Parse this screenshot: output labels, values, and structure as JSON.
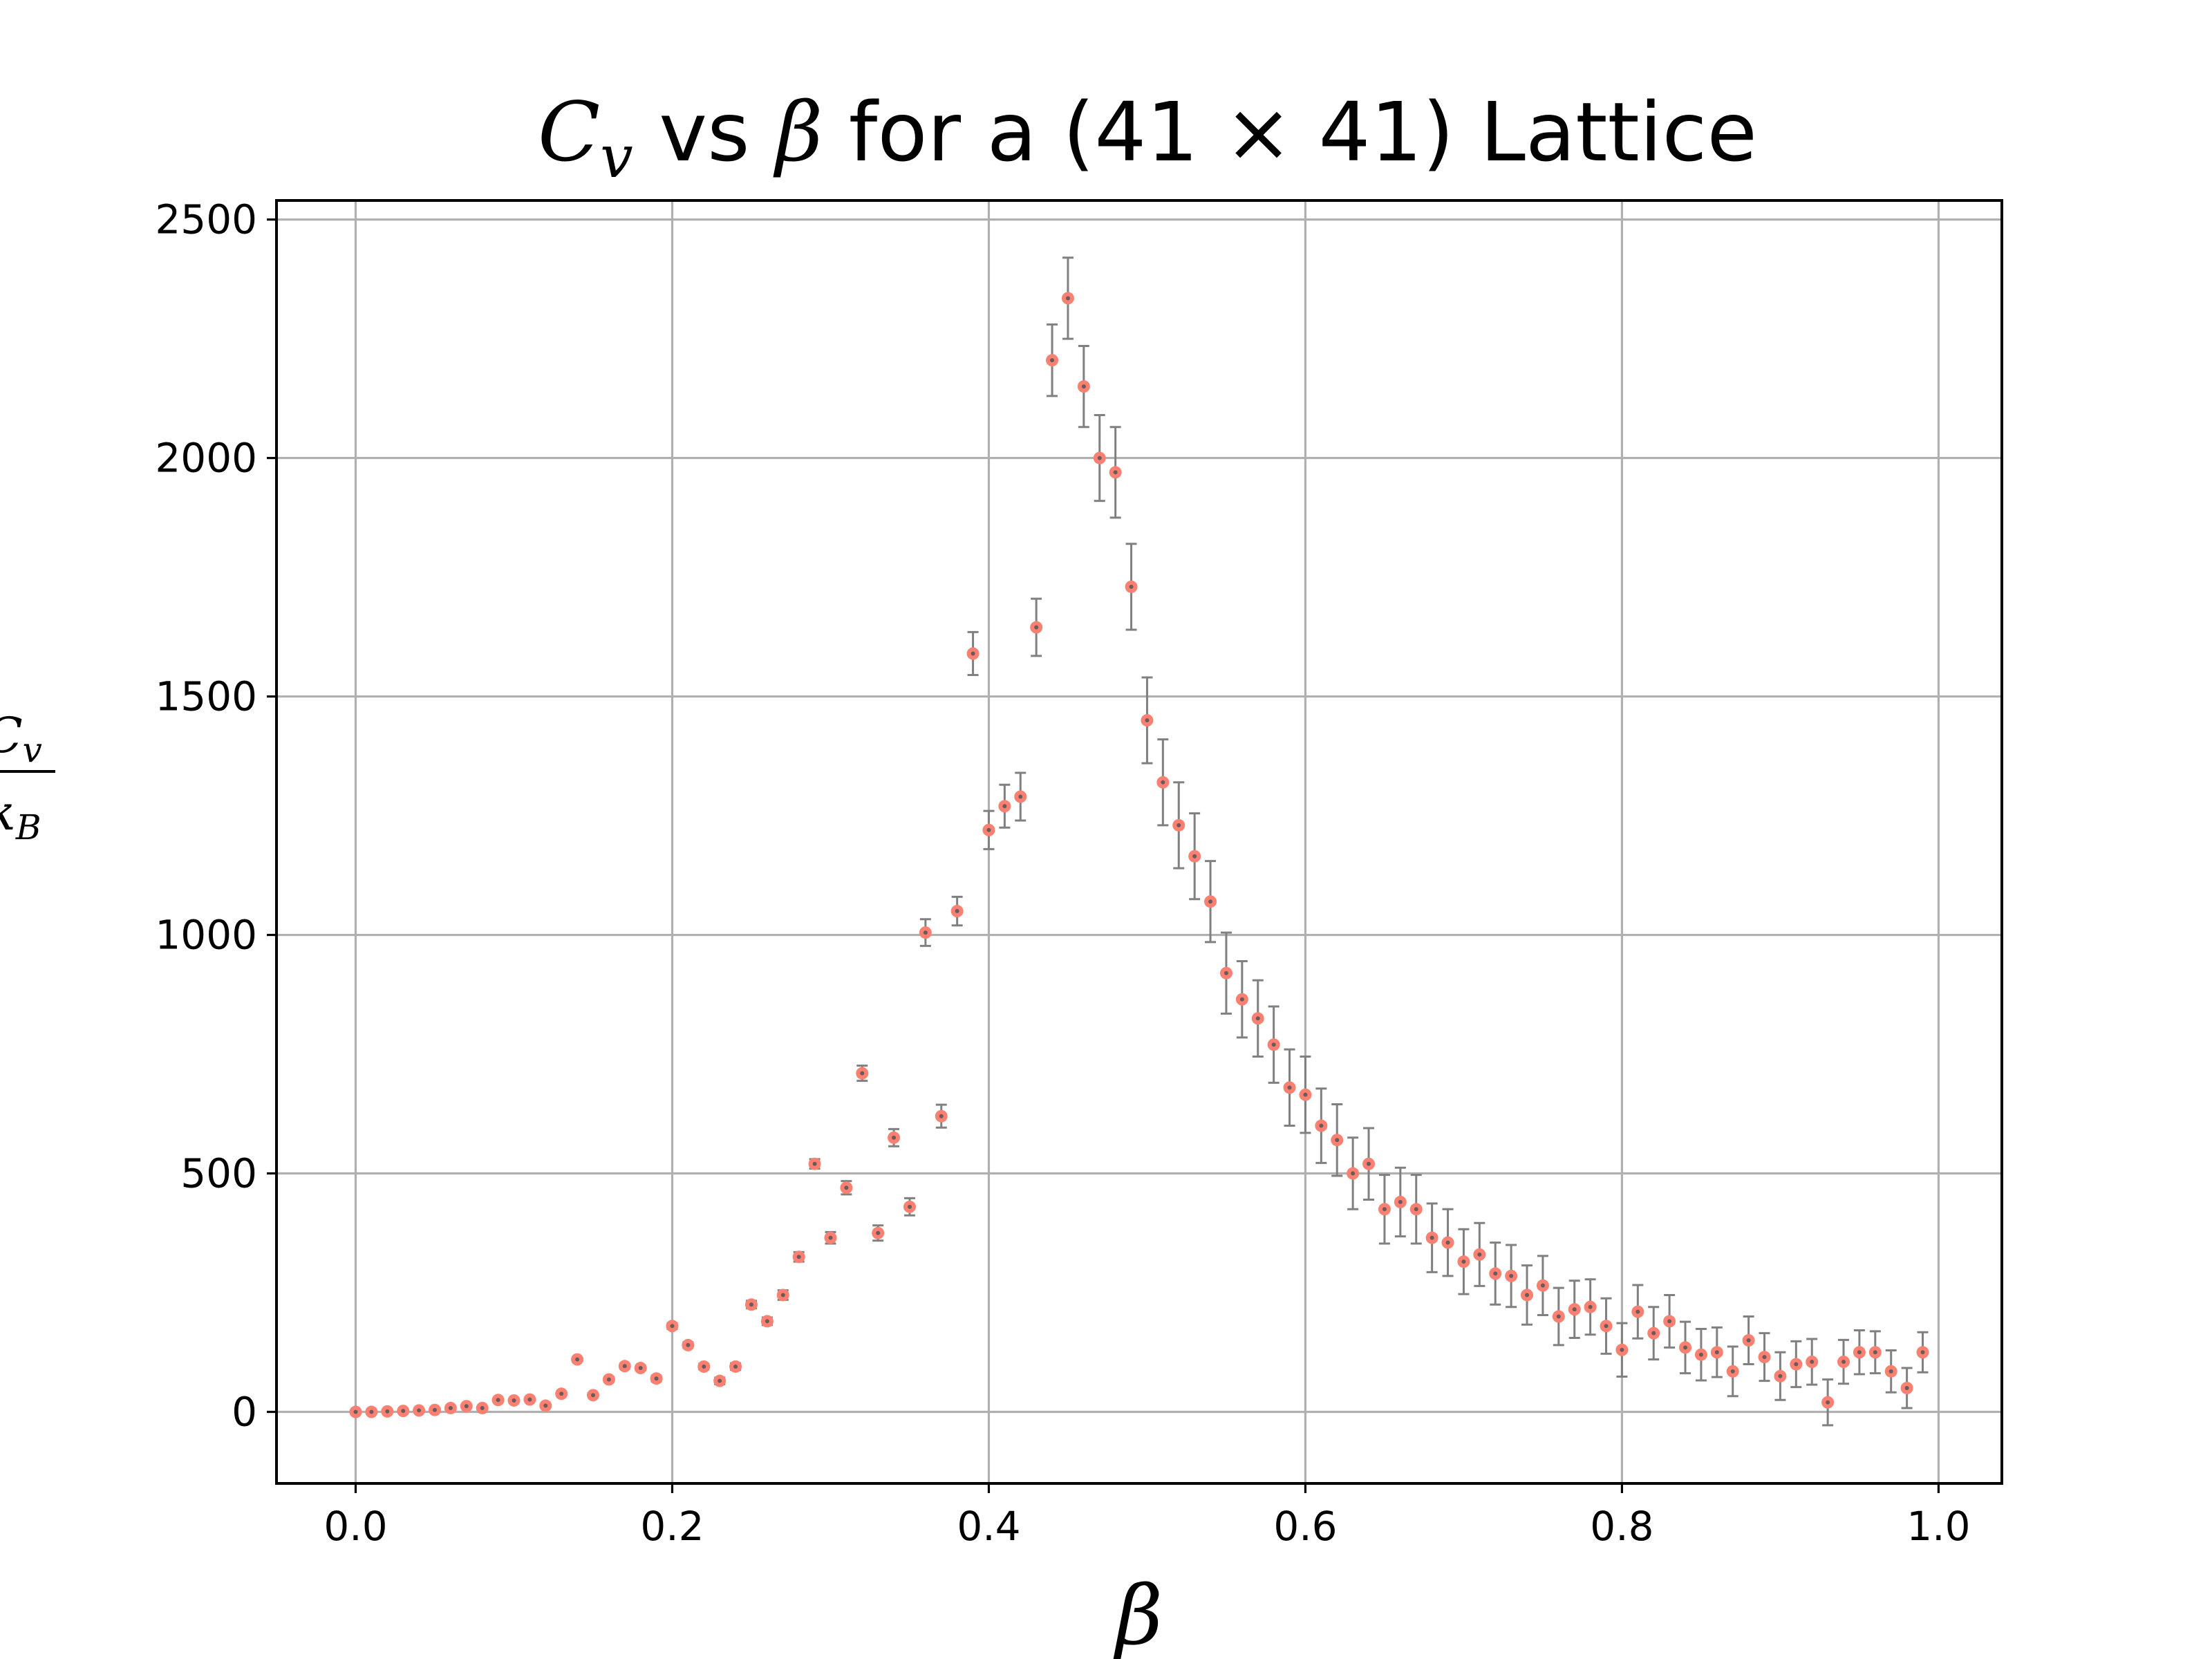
{
  "chart_data": {
    "type": "scatter",
    "title_parts": {
      "cv_symbol": "C",
      "cv_subscript": "v",
      "vs_text": " vs ",
      "beta_symbol": "β",
      "rest": " for a (41 × 41) Lattice"
    },
    "xlabel": "β",
    "ylabel": {
      "numerator": "C",
      "numerator_subscript": "v",
      "denominator": "k",
      "denominator_subscript": "B"
    },
    "xlim": [
      -0.05,
      1.04
    ],
    "ylim": [
      -150,
      2540
    ],
    "xticks": [
      "0.0",
      "0.2",
      "0.4",
      "0.6",
      "0.8",
      "1.0"
    ],
    "xtick_values": [
      0.0,
      0.2,
      0.4,
      0.6,
      0.8,
      1.0
    ],
    "yticks": [
      "0",
      "500",
      "1000",
      "1500",
      "2000",
      "2500"
    ],
    "ytick_values": [
      0,
      500,
      1000,
      1500,
      2000,
      2500
    ],
    "grid": true,
    "marker_color": "#fa8072",
    "errorbar_color": "#808080",
    "x": [
      0.0,
      0.01,
      0.02,
      0.03,
      0.04,
      0.05,
      0.06,
      0.07,
      0.08,
      0.09,
      0.1,
      0.11,
      0.12,
      0.13,
      0.14,
      0.15,
      0.16,
      0.17,
      0.18,
      0.19,
      0.2,
      0.21,
      0.22,
      0.23,
      0.24,
      0.25,
      0.26,
      0.27,
      0.28,
      0.29,
      0.3,
      0.31,
      0.32,
      0.33,
      0.34,
      0.35,
      0.36,
      0.37,
      0.38,
      0.39,
      0.4,
      0.41,
      0.42,
      0.43,
      0.44,
      0.45,
      0.46,
      0.47,
      0.48,
      0.49,
      0.5,
      0.51,
      0.52,
      0.53,
      0.54,
      0.55,
      0.56,
      0.57,
      0.58,
      0.59,
      0.6,
      0.61,
      0.62,
      0.63,
      0.64,
      0.65,
      0.66,
      0.67,
      0.68,
      0.69,
      0.7,
      0.71,
      0.72,
      0.73,
      0.74,
      0.75,
      0.76,
      0.77,
      0.78,
      0.79,
      0.8,
      0.81,
      0.82,
      0.83,
      0.84,
      0.85,
      0.86,
      0.87,
      0.88,
      0.89,
      0.9,
      0.91,
      0.92,
      0.93,
      0.94,
      0.95,
      0.96,
      0.97,
      0.98,
      0.99
    ],
    "y": [
      0,
      0,
      1,
      2,
      3,
      4,
      8,
      12,
      8,
      25,
      24,
      26,
      13,
      38,
      110,
      35,
      68,
      96,
      92,
      70,
      180,
      140,
      95,
      65,
      95,
      225,
      190,
      245,
      325,
      520,
      365,
      470,
      710,
      375,
      575,
      430,
      1005,
      620,
      1050,
      1590,
      1220,
      1270,
      1290,
      1645,
      2205,
      2335,
      2150,
      2000,
      1970,
      1730,
      1450,
      1320,
      1230,
      1165,
      1070,
      920,
      865,
      825,
      770,
      680,
      665,
      600,
      570,
      500,
      520,
      425,
      440,
      425,
      365,
      355,
      315,
      330,
      290,
      285,
      245,
      265,
      200,
      215,
      220,
      180,
      130,
      210,
      165,
      190,
      135,
      120,
      125,
      85,
      150,
      115,
      75,
      100,
      105,
      20,
      105,
      125,
      125,
      85,
      50,
      125
    ],
    "yerr": [
      1,
      1,
      1,
      1,
      1,
      1,
      1,
      1,
      1,
      2,
      2,
      2,
      2,
      3,
      4,
      4,
      5,
      5,
      5,
      6,
      6,
      6,
      6,
      7,
      7,
      8,
      8,
      10,
      10,
      10,
      12,
      14,
      16,
      16,
      18,
      18,
      28,
      24,
      30,
      45,
      40,
      45,
      50,
      60,
      75,
      85,
      85,
      90,
      95,
      90,
      90,
      90,
      90,
      90,
      85,
      85,
      80,
      80,
      80,
      80,
      80,
      78,
      75,
      75,
      75,
      72,
      72,
      72,
      72,
      70,
      68,
      66,
      65,
      65,
      62,
      62,
      60,
      60,
      58,
      58,
      56,
      56,
      55,
      55,
      54,
      54,
      52,
      52,
      50,
      50,
      50,
      48,
      48,
      48,
      46,
      46,
      44,
      44,
      42,
      42
    ]
  }
}
